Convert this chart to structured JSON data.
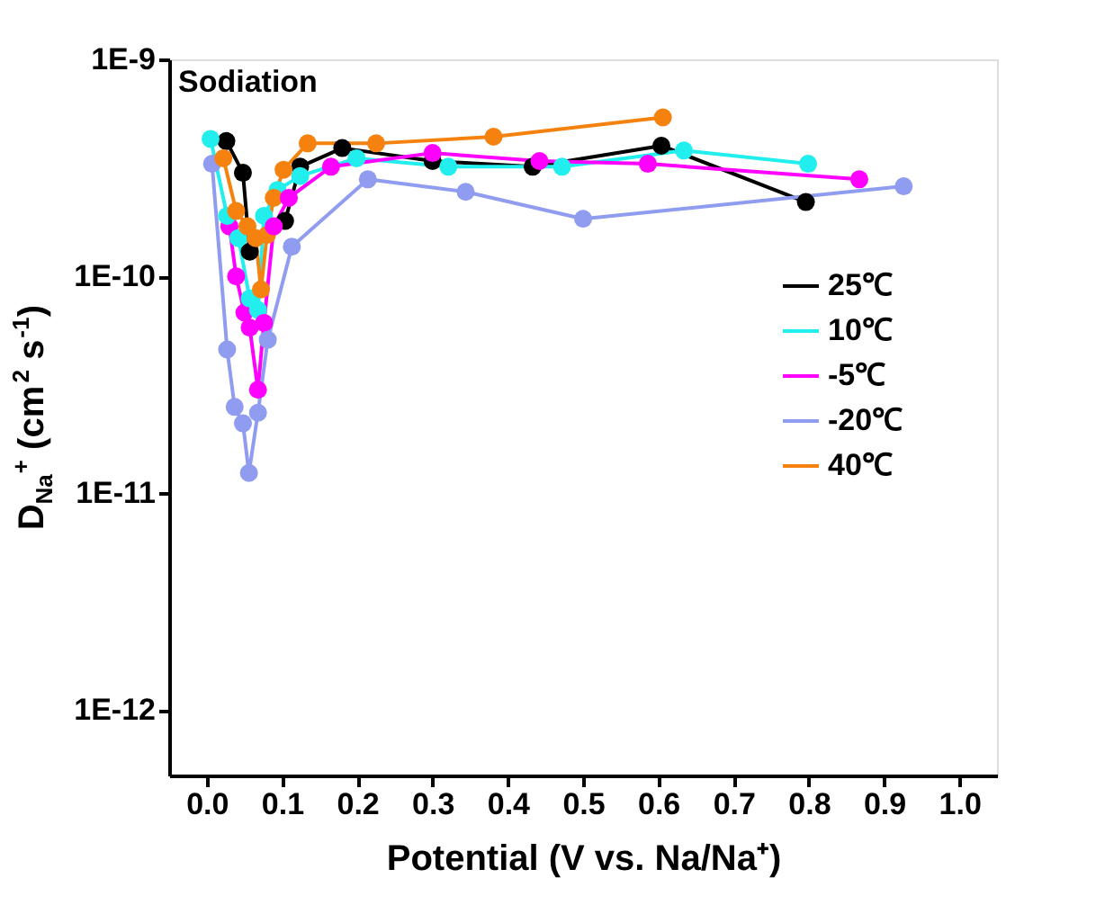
{
  "chart_data": {
    "type": "line",
    "annotations": [
      "Sodiation"
    ],
    "xlabel": "Potential (V vs. Na/Na⁺)",
    "ylabel": "D$_{Na}$$^{+}$ (cm$^{2}$ s$^{-1}$)",
    "log": "y",
    "xlim": [
      -0.05,
      1.05
    ],
    "xticks": [
      {
        "value": 0,
        "label": "0.0"
      },
      0.1,
      0.2,
      0.3,
      0.4,
      0.5,
      0.6,
      0.7,
      0.8,
      0.9,
      {
        "value": 1,
        "label": "1.0"
      }
    ],
    "ylim": [
      5e-13,
      1e-09
    ],
    "yticks": [
      {
        "value": 1e-12,
        "label": "1E-12"
      },
      {
        "value": 1e-11,
        "label": "1E-11"
      },
      {
        "value": 1e-10,
        "label": "1E-10"
      },
      {
        "value": 1e-09,
        "label": "1E-9"
      }
    ],
    "grid": false,
    "legend": "right",
    "marker": "circle",
    "line_style": "solid",
    "series": [
      {
        "name": "25℃",
        "color": "#000000",
        "x": [
          0.026,
          0.048,
          0.057,
          0.104,
          0.124,
          0.18,
          0.3,
          0.433,
          0.604,
          0.796
        ],
        "values": [
          4.2e-10,
          3e-10,
          1.3e-10,
          1.8e-10,
          3.2e-10,
          3.9e-10,
          3.4e-10,
          3.2e-10,
          4e-10,
          2.2e-10
        ]
      },
      {
        "name": "10℃",
        "color": "#22eeee",
        "x": [
          0.005,
          0.027,
          0.042,
          0.057,
          0.068,
          0.076,
          0.094,
          0.124,
          0.199,
          0.321,
          0.472,
          0.634,
          0.799
        ],
        "values": [
          4.3e-10,
          1.9e-10,
          1.5e-10,
          7.9e-11,
          7e-11,
          1.9e-10,
          2.5e-10,
          2.9e-10,
          3.5e-10,
          3.2e-10,
          3.2e-10,
          3.8e-10,
          3.3e-10
        ]
      },
      {
        "name": "-5℃",
        "color": "#ff00ff",
        "x": [
          0.03,
          0.039,
          0.05,
          0.057,
          0.068,
          0.076,
          0.089,
          0.109,
          0.165,
          0.3,
          0.442,
          0.586,
          0.867
        ],
        "values": [
          1.7e-10,
          1e-10,
          6.8e-11,
          5.8e-11,
          3e-11,
          6.1e-11,
          1.7e-10,
          2.3e-10,
          3.2e-10,
          3.7e-10,
          3.4e-10,
          3.3e-10,
          2.8e-10
        ]
      },
      {
        "name": "-20℃",
        "color": "#8f9cf0",
        "x": [
          0.007,
          0.027,
          0.037,
          0.048,
          0.056,
          0.068,
          0.081,
          0.113,
          0.214,
          0.344,
          0.5,
          0.926
        ],
        "values": [
          3.3e-10,
          4.6e-11,
          2.5e-11,
          2.1e-11,
          1.24e-11,
          2.35e-11,
          5.1e-11,
          1.37e-10,
          2.8e-10,
          2.45e-10,
          1.84e-10,
          2.6e-10
        ]
      },
      {
        "name": "40℃",
        "color": "#f5820f",
        "x": [
          0.022,
          0.039,
          0.054,
          0.065,
          0.072,
          0.08,
          0.089,
          0.102,
          0.134,
          0.225,
          0.381,
          0.606
        ],
        "values": [
          3.5e-10,
          2e-10,
          1.7e-10,
          1.5e-10,
          8.7e-11,
          1.55e-10,
          2.3e-10,
          3.1e-10,
          4.1e-10,
          4.1e-10,
          4.4e-10,
          5.4e-10
        ]
      }
    ]
  }
}
